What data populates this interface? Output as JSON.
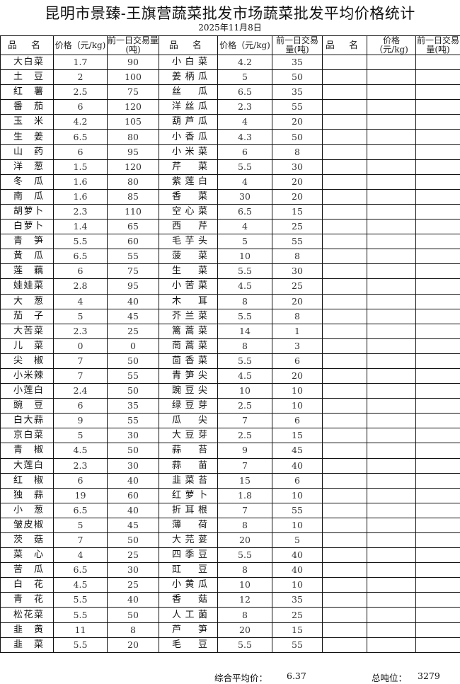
{
  "title": "昆明市景臻-王旗营蔬菜批发市场蔬菜批发平均价格统计",
  "date": "2025年11月8日",
  "headers": {
    "name": "品 名",
    "price": "价格（元/kg)",
    "volume": "前一日交易量(吨)"
  },
  "rows": [
    [
      [
        "大白菜",
        "1.7",
        "90"
      ],
      [
        "小白菜",
        "4.2",
        "35"
      ]
    ],
    [
      [
        "土豆",
        "2",
        "100"
      ],
      [
        "姜柄瓜",
        "5",
        "50"
      ]
    ],
    [
      [
        "红薯",
        "2.5",
        "75"
      ],
      [
        "丝瓜",
        "6.5",
        "35"
      ]
    ],
    [
      [
        "番茄",
        "6",
        "120"
      ],
      [
        "洋丝瓜",
        "2.3",
        "55"
      ]
    ],
    [
      [
        "玉米",
        "4.2",
        "105"
      ],
      [
        "葫芦瓜",
        "4",
        "20"
      ]
    ],
    [
      [
        "生姜",
        "6.5",
        "80"
      ],
      [
        "小香瓜",
        "4.3",
        "50"
      ]
    ],
    [
      [
        "山药",
        "6",
        "95"
      ],
      [
        "小米菜",
        "6",
        "8"
      ]
    ],
    [
      [
        "洋葱",
        "1.5",
        "120"
      ],
      [
        "芹菜",
        "5.5",
        "30"
      ]
    ],
    [
      [
        "冬瓜",
        "1.6",
        "80"
      ],
      [
        "紫莲白",
        "4",
        "20"
      ]
    ],
    [
      [
        "南瓜",
        "1.6",
        "85"
      ],
      [
        "香菜",
        "30",
        "20"
      ]
    ],
    [
      [
        "胡萝卜",
        "2.3",
        "110"
      ],
      [
        "空心菜",
        "6.5",
        "15"
      ]
    ],
    [
      [
        "白萝卜",
        "1.4",
        "65"
      ],
      [
        "西芹",
        "4",
        "25"
      ]
    ],
    [
      [
        "青笋",
        "5.5",
        "60"
      ],
      [
        "毛芋头",
        "5",
        "55"
      ]
    ],
    [
      [
        "黄瓜",
        "6.5",
        "55"
      ],
      [
        "菠菜",
        "10",
        "8"
      ]
    ],
    [
      [
        "莲藕",
        "6",
        "75"
      ],
      [
        "生菜",
        "5.5",
        "30"
      ]
    ],
    [
      [
        "娃娃菜",
        "2.8",
        "95"
      ],
      [
        "小苦菜",
        "4.5",
        "25"
      ]
    ],
    [
      [
        "大葱",
        "4",
        "40"
      ],
      [
        "木耳",
        "8",
        "20"
      ]
    ],
    [
      [
        "茄子",
        "5",
        "45"
      ],
      [
        "芥兰菜",
        "5.5",
        "8"
      ]
    ],
    [
      [
        "大苦菜",
        "2.3",
        "25"
      ],
      [
        "篱蒿菜",
        "14",
        "1"
      ]
    ],
    [
      [
        "儿菜",
        "0",
        "0"
      ],
      [
        "茼蒿菜",
        "8",
        "3"
      ]
    ],
    [
      [
        "尖椒",
        "7",
        "50"
      ],
      [
        "茴香菜",
        "5.5",
        "6"
      ]
    ],
    [
      [
        "小米辣",
        "7",
        "55"
      ],
      [
        "青笋尖",
        "4.5",
        "20"
      ]
    ],
    [
      [
        "小莲白",
        "2.4",
        "50"
      ],
      [
        "豌豆尖",
        "10",
        "10"
      ]
    ],
    [
      [
        "豌豆",
        "6",
        "35"
      ],
      [
        "绿豆芽",
        "2.5",
        "10"
      ]
    ],
    [
      [
        "白大蒜",
        "9",
        "55"
      ],
      [
        "瓜尖",
        "7",
        "6"
      ]
    ],
    [
      [
        "京白菜",
        "5",
        "30"
      ],
      [
        "大豆芽",
        "2.5",
        "15"
      ]
    ],
    [
      [
        "青椒",
        "4.5",
        "50"
      ],
      [
        "蒜苔",
        "9",
        "45"
      ]
    ],
    [
      [
        "大莲白",
        "2.3",
        "30"
      ],
      [
        "蒜苗",
        "7",
        "40"
      ]
    ],
    [
      [
        "红椒",
        "6",
        "40"
      ],
      [
        "韭菜苔",
        "15",
        "6"
      ]
    ],
    [
      [
        "独蒜",
        "19",
        "60"
      ],
      [
        "红萝卜",
        "1.8",
        "10"
      ]
    ],
    [
      [
        "小葱",
        "6.5",
        "40"
      ],
      [
        "折耳根",
        "7",
        "55"
      ]
    ],
    [
      [
        "皱皮椒",
        "5",
        "45"
      ],
      [
        "薄荷",
        "8",
        "10"
      ]
    ],
    [
      [
        "茨菇",
        "7",
        "50"
      ],
      [
        "大芫荽",
        "20",
        "5"
      ]
    ],
    [
      [
        "菜心",
        "4",
        "25"
      ],
      [
        "四季豆",
        "5.5",
        "40"
      ]
    ],
    [
      [
        "苦瓜",
        "6.5",
        "30"
      ],
      [
        "豇豆",
        "8",
        "40"
      ]
    ],
    [
      [
        "白花",
        "4.5",
        "25"
      ],
      [
        "小黄瓜",
        "10",
        "10"
      ]
    ],
    [
      [
        "青花",
        "5.5",
        "40"
      ],
      [
        "香菇",
        "12",
        "35"
      ]
    ],
    [
      [
        "松花菜",
        "5.5",
        "50"
      ],
      [
        "人工菌",
        "8",
        "25"
      ]
    ],
    [
      [
        "韭黄",
        "11",
        "8"
      ],
      [
        "芦笋",
        "20",
        "15"
      ]
    ],
    [
      [
        "韭菜",
        "5.5",
        "20"
      ],
      [
        "毛豆",
        "5.5",
        "55"
      ]
    ]
  ],
  "footer": {
    "avg_label": "综合平均价：",
    "avg_value": "6.37",
    "total_label": "总吨位：",
    "total_value": "3279"
  }
}
